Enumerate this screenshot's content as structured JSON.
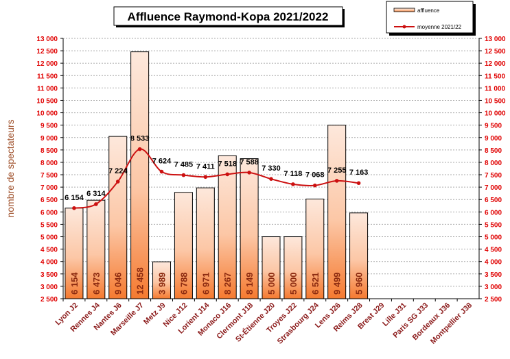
{
  "chart_data": {
    "type": "bar",
    "title": "Affluence Raymond-Kopa 2021/2022",
    "ylabel": "nombre de spectateurs",
    "xlabel": "",
    "ylim": [
      2500,
      13000
    ],
    "ytick_step": 500,
    "grid": true,
    "legend_position": "top-right",
    "categories": [
      "Lyon J2",
      "Rennes J4",
      "Nantes J6",
      "Marseille J7",
      "Metz J9",
      "Nice J12",
      "Lorient J14",
      "Monaco J16",
      "Clermont J18",
      "St-Étienne J20",
      "Troyes J22",
      "Strasbourg J24",
      "Lens J26",
      "Reims J28",
      "Brest J29",
      "Lille J31",
      "Paris SG J33",
      "Bordeaux J36",
      "Montpellier J38"
    ],
    "series": [
      {
        "name": "affluence",
        "type": "bar",
        "values": [
          6154,
          6473,
          9046,
          12458,
          3989,
          6788,
          6971,
          8267,
          8149,
          5000,
          5000,
          6521,
          9499,
          5960,
          null,
          null,
          null,
          null,
          null
        ],
        "color": "#f5a070"
      },
      {
        "name": "moyenne 2021/22",
        "type": "line",
        "values": [
          6154,
          6314,
          7224,
          8533,
          7624,
          7485,
          7411,
          7518,
          7588,
          7330,
          7118,
          7068,
          7255,
          7163,
          null,
          null,
          null,
          null,
          null
        ],
        "color": "#cc1010"
      }
    ]
  }
}
